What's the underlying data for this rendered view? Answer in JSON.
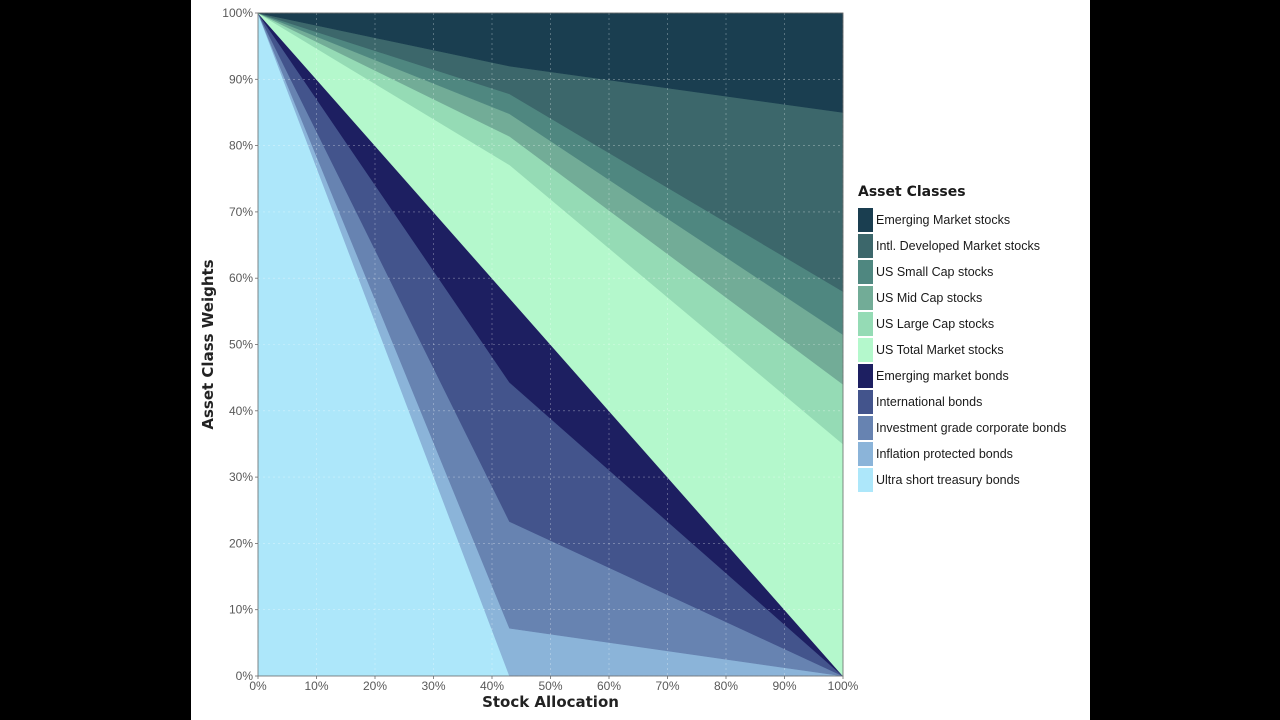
{
  "chart_data": {
    "type": "area",
    "stacked": true,
    "xlabel": "Stock Allocation",
    "ylabel": "Asset Class Weights",
    "x": [
      0,
      43,
      100
    ],
    "xlim": [
      0,
      100
    ],
    "ylim": [
      0,
      100
    ],
    "x_ticks": [
      0,
      10,
      20,
      30,
      40,
      50,
      60,
      70,
      80,
      90,
      100
    ],
    "y_ticks": [
      0,
      10,
      20,
      30,
      40,
      50,
      60,
      70,
      80,
      90,
      100
    ],
    "x_tick_labels": [
      "0%",
      "10%",
      "20%",
      "30%",
      "40%",
      "50%",
      "60%",
      "70%",
      "80%",
      "90%",
      "100%"
    ],
    "y_tick_labels": [
      "0%",
      "10%",
      "20%",
      "30%",
      "40%",
      "50%",
      "60%",
      "70%",
      "80%",
      "90%",
      "100%"
    ],
    "grid": true,
    "legend_title": "Asset Classes",
    "legend_position": "right",
    "series": [
      {
        "name": "Ultra short treasury bonds",
        "color": "#ade7fa",
        "values": [
          100,
          0,
          0
        ]
      },
      {
        "name": "Inflation protected bonds",
        "color": "#8bb4d9",
        "values": [
          0,
          7.2,
          0
        ]
      },
      {
        "name": "Investment grade corporate bonds",
        "color": "#6783b1",
        "values": [
          0,
          16.1,
          0
        ]
      },
      {
        "name": "International bonds",
        "color": "#43548c",
        "values": [
          0,
          21.0,
          0
        ]
      },
      {
        "name": "Emerging market bonds",
        "color": "#1d1f61",
        "values": [
          0,
          12.7,
          0
        ]
      },
      {
        "name": "US Total Market stocks",
        "color": "#b4f8cc",
        "values": [
          0,
          20.1,
          35
        ]
      },
      {
        "name": "US Large Cap stocks",
        "color": "#95dbb5",
        "values": [
          0,
          4.3,
          9
        ]
      },
      {
        "name": "US Mid Cap stocks",
        "color": "#72ac97",
        "values": [
          0,
          3.4,
          7.5
        ]
      },
      {
        "name": "US Small Cap stocks",
        "color": "#4f8780",
        "values": [
          0,
          3.0,
          6.5
        ]
      },
      {
        "name": "Intl. Developed Market stocks",
        "color": "#3c676b",
        "values": [
          0,
          4.2,
          27
        ]
      },
      {
        "name": "Emerging Market stocks",
        "color": "#1a3e50",
        "values": [
          0,
          8.0,
          15
        ]
      }
    ]
  }
}
